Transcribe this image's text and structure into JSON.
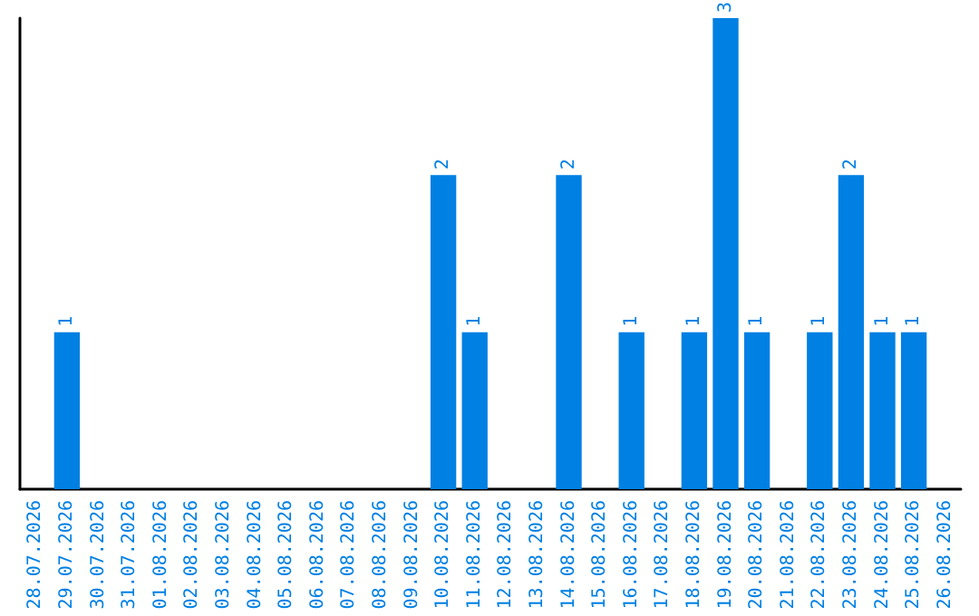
{
  "chart_data": {
    "type": "bar",
    "categories": [
      "28.07.2026",
      "29.07.2026",
      "30.07.2026",
      "31.07.2026",
      "01.08.2026",
      "02.08.2026",
      "03.08.2026",
      "04.08.2026",
      "05.08.2026",
      "06.08.2026",
      "07.08.2026",
      "08.08.2026",
      "09.08.2026",
      "10.08.2026",
      "11.08.2026",
      "12.08.2026",
      "13.08.2026",
      "14.08.2026",
      "15.08.2026",
      "16.08.2026",
      "17.08.2026",
      "18.08.2026",
      "19.08.2026",
      "20.08.2026",
      "21.08.2026",
      "22.08.2026",
      "23.08.2026",
      "24.08.2026",
      "25.08.2026",
      "26.08.2026"
    ],
    "values": [
      0,
      1,
      0,
      0,
      0,
      0,
      0,
      0,
      0,
      0,
      0,
      0,
      0,
      2,
      1,
      0,
      0,
      2,
      0,
      1,
      0,
      1,
      3,
      1,
      0,
      1,
      2,
      1,
      1,
      0
    ],
    "value_labels": [
      null,
      "1",
      null,
      null,
      null,
      null,
      null,
      null,
      null,
      null,
      null,
      null,
      null,
      "2",
      "1",
      null,
      null,
      "2",
      null,
      "1",
      null,
      "1",
      "3",
      "1",
      null,
      "1",
      "2",
      "1",
      "1",
      null
    ],
    "color": "#0080e3"
  }
}
